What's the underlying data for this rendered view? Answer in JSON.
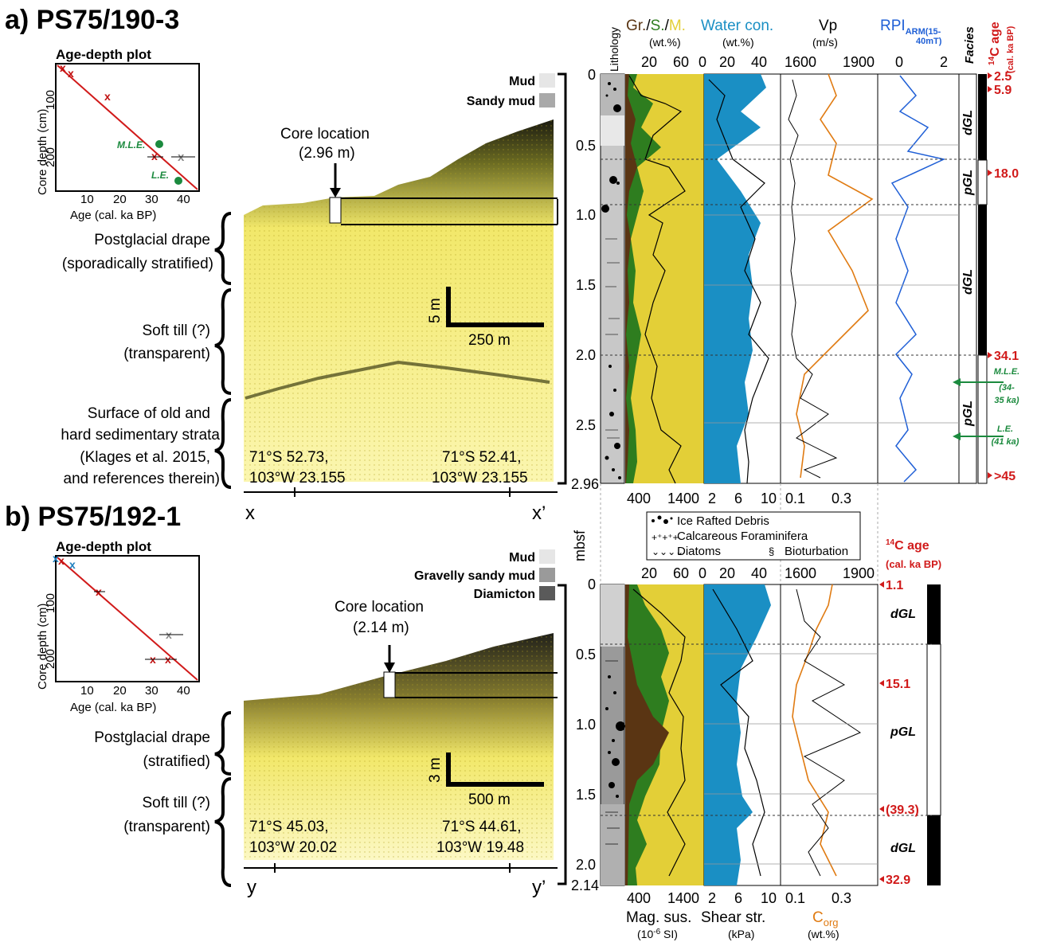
{
  "panel_a": {
    "title": "a) PS75/190-3",
    "age_plot": {
      "title": "Age-depth plot",
      "xlabel": "Age (cal. ka BP)",
      "ylabel": "Core depth (cm)",
      "xticks": [
        "10",
        "20",
        "30",
        "40"
      ],
      "yticks": [
        "100",
        "200"
      ],
      "mle_label": "M.L.E.",
      "le_label": "L.E."
    },
    "seismic": {
      "core_location": "Core location",
      "core_depth": "(2.96 m)",
      "legend": [
        "Mud",
        "Sandy mud"
      ],
      "scale_v": "5 m",
      "scale_h": "250 m",
      "coord_left_1": "71°S 52.73,",
      "coord_left_2": "103°W 23.155",
      "coord_right_1": "71°S 52.41,",
      "coord_right_2": "103°W 23.155",
      "x_left": "x",
      "x_right": "x’"
    },
    "units": [
      {
        "line1": "Postglacial drape",
        "line2": "(sporadically stratified)",
        "line3": "",
        "line4": ""
      },
      {
        "line1": "Soft till (?)",
        "line2": "(transparent)",
        "line3": "",
        "line4": ""
      },
      {
        "line1": "Surface of old and",
        "line2": "hard sedimentary strata",
        "line3": "(Klages et al. 2015,",
        "line4": "and references therein)"
      }
    ],
    "log_headers": {
      "lithology": "Lithology",
      "grain_gr": "Gr.",
      "grain_s": "S.",
      "grain_m": "M.",
      "grain_unit": "(wt.%)",
      "water": "Water con.",
      "water_unit": "(wt.%)",
      "vp": "Vp",
      "vp_unit": "(m/s)",
      "rpi": "RPI",
      "rpi_sub": "ARM(15-",
      "rpi_sub2": "40mT)",
      "facies": "Facies",
      "age": "C age",
      "age_sup": "14",
      "age_unit": "(cal. ka BP)"
    },
    "top_ticks": {
      "grain": [
        "20",
        "60"
      ],
      "water": [
        "0",
        "20",
        "40"
      ],
      "vp": [
        "1600",
        "1900"
      ],
      "rpi": [
        "0",
        "2"
      ]
    },
    "bottom_ticks": {
      "magsus": [
        "400",
        "1400"
      ],
      "shear": [
        "2",
        "6",
        "10"
      ],
      "corg": [
        "0.1",
        "0.3"
      ]
    },
    "depth_ticks": [
      "0",
      "0.5",
      "1.0",
      "1.5",
      "2.0",
      "2.5",
      "2.96"
    ],
    "facies": [
      "dGL",
      "pGL",
      "dGL",
      "pGL"
    ],
    "ages": [
      "2.5",
      "5.9",
      "18.0",
      "34.1",
      ">45"
    ],
    "mle_note": "M.L.E.",
    "mle_note2": "(34-",
    "mle_note3": "35 ka)",
    "le_note": "L.E.",
    "le_note2": "(41 ka)"
  },
  "legend_mid": {
    "mbsf": "mbsf",
    "ird": "Ice Rafted Debris",
    "foram": "Calcareous Foraminifera",
    "diatoms": "Diatoms",
    "bioturbation": "Bioturbation"
  },
  "panel_b": {
    "title": "b) PS75/192-1",
    "age_plot": {
      "title": "Age-depth plot",
      "xlabel": "Age (cal. ka BP)",
      "ylabel": "Core depth (cm)",
      "xticks": [
        "10",
        "20",
        "30",
        "40"
      ],
      "yticks": [
        "100",
        "200"
      ]
    },
    "seismic": {
      "core_location": "Core location",
      "core_depth": "(2.14 m)",
      "legend": [
        "Mud",
        "Gravelly sandy mud",
        "Diamicton"
      ],
      "scale_v": "3 m",
      "scale_h": "500 m",
      "coord_left_1": "71°S 45.03,",
      "coord_left_2": "103°W 20.02",
      "coord_right_1": "71°S 44.61,",
      "coord_right_2": "103°W 19.48",
      "y_left": "y",
      "y_right": "y’"
    },
    "units": [
      {
        "line1": "Postglacial drape",
        "line2": "(stratified)"
      },
      {
        "line1": "Soft till (?)",
        "line2": "(transparent)"
      }
    ],
    "top_ticks": {
      "grain": [
        "20",
        "60"
      ],
      "water": [
        "0",
        "20",
        "40"
      ],
      "vp": [
        "1600",
        "1900"
      ]
    },
    "age_header": "C age",
    "age_sup": "14",
    "age_unit": "(cal. ka BP)",
    "depth_ticks": [
      "0",
      "0.5",
      "1.0",
      "1.5",
      "2.0",
      "2.14"
    ],
    "facies": [
      "dGL",
      "pGL",
      "dGL"
    ],
    "ages": [
      "1.1",
      "15.1",
      "(39.3)",
      "32.9"
    ],
    "bottom_labels": {
      "magsus": "Mag. sus.",
      "magsus_unit": "(10",
      "magsus_exp": "-6",
      "magsus_unit2": " SI)",
      "shear": "Shear str.",
      "shear_unit": "(kPa)",
      "corg": "C",
      "corg_sub": "org",
      "corg_unit": "(wt.%)"
    },
    "bottom_ticks": {
      "magsus": [
        "400",
        "1400"
      ],
      "shear": [
        "2",
        "6",
        "10"
      ],
      "corg": [
        "0.1",
        "0.3"
      ]
    }
  },
  "colors": {
    "gravel": "#5a3513",
    "sand": "#2e7d1f",
    "mud": "#e3cf37",
    "water": "#1a8fc4",
    "vp": "#e07b12",
    "rpi": "#1f5fd6",
    "age_red": "#d11a1a",
    "green_note": "#1b8a3e"
  }
}
